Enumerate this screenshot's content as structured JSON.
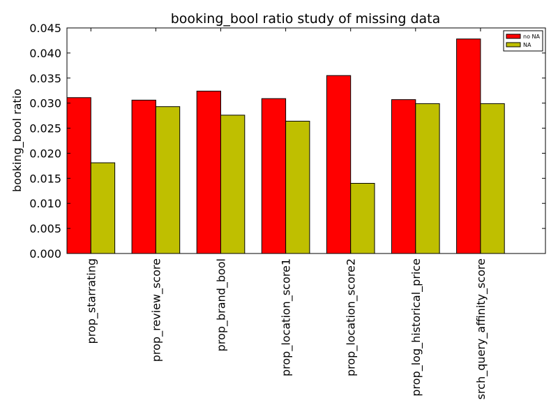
{
  "chart_data": {
    "type": "bar",
    "title": "booking_bool ratio study of missing data",
    "xlabel": "",
    "ylabel": "booking_bool ratio",
    "ylim": [
      0,
      0.045
    ],
    "yticks": [
      "0.000",
      "0.005",
      "0.010",
      "0.015",
      "0.020",
      "0.025",
      "0.030",
      "0.035",
      "0.040",
      "0.045"
    ],
    "categories": [
      "prop_starrating",
      "prop_review_score",
      "prop_brand_bool",
      "prop_location_score1",
      "prop_location_score2",
      "prop_log_historical_price",
      "srch_query_affinity_score"
    ],
    "series": [
      {
        "name": "no NA",
        "color": "#ff0000",
        "values": [
          0.0311,
          0.0306,
          0.0324,
          0.0309,
          0.0355,
          0.0307,
          0.0428
        ]
      },
      {
        "name": "NA",
        "color": "#bfbf00",
        "values": [
          0.0181,
          0.0293,
          0.0276,
          0.0264,
          0.014,
          0.0299,
          0.0299
        ]
      }
    ],
    "grid": false,
    "legend_position": "top-right"
  }
}
